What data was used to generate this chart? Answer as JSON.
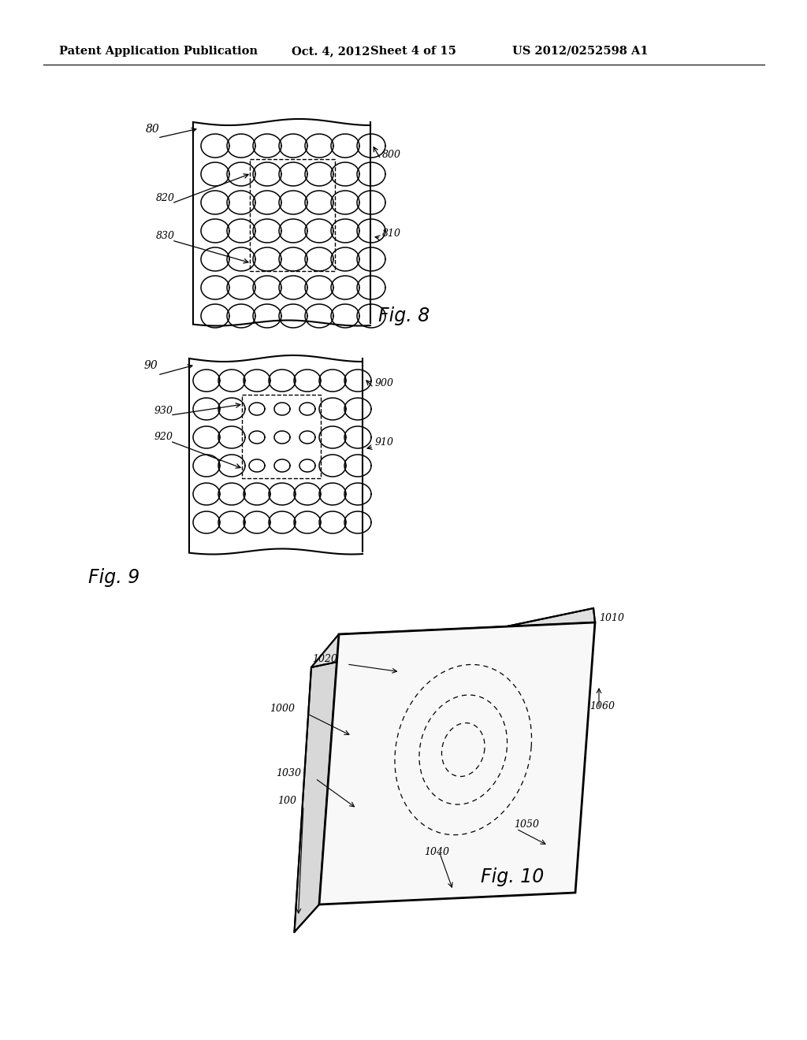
{
  "bg_color": "#ffffff",
  "header_text": "Patent Application Publication",
  "header_date": "Oct. 4, 2012",
  "header_sheet": "Sheet 4 of 15",
  "header_patent": "US 2012/0252598 A1",
  "fig8_label": "Fig. 8",
  "fig9_label": "Fig. 9",
  "fig10_label": "Fig. 10",
  "fig8_ref": "80",
  "fig8_800": "800",
  "fig8_810": "810",
  "fig8_820": "820",
  "fig8_830": "830",
  "fig9_ref": "90",
  "fig9_900": "900",
  "fig9_910": "910",
  "fig9_920": "920",
  "fig9_930": "930",
  "fig10_ref": "100",
  "fig10_1000": "1000",
  "fig10_1010": "1010",
  "fig10_1020": "1020",
  "fig10_1030": "1030",
  "fig10_1040": "1040",
  "fig10_1050": "1050",
  "fig10_1060": "1060"
}
